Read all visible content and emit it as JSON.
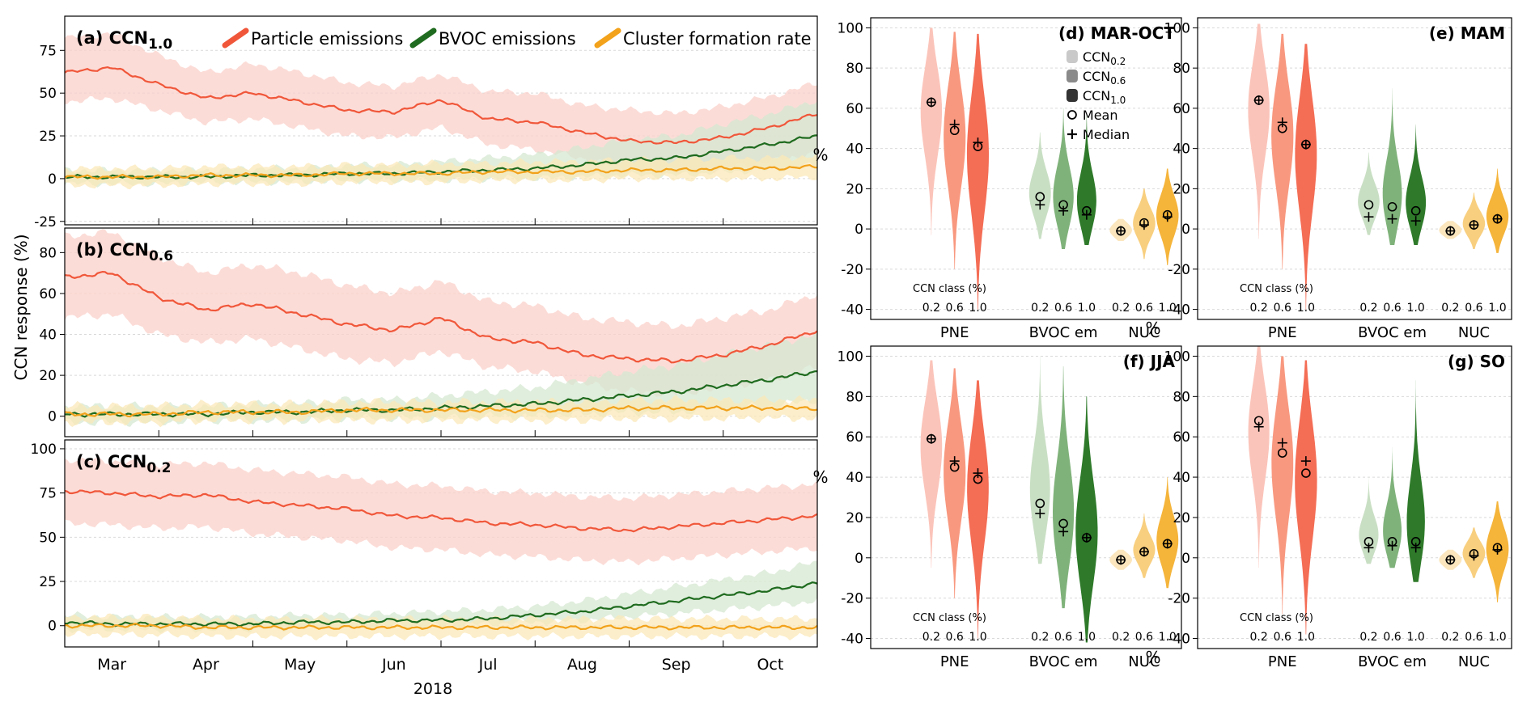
{
  "chart_data": [
    {
      "type": "line",
      "title": "(a) CCN",
      "title_sub": "1.0",
      "ylim": [
        -27,
        95
      ],
      "yticks": [
        -25,
        0,
        25,
        50,
        75
      ],
      "grid": true,
      "legend": {
        "placement": "top",
        "entries": [
          "Particle emissions",
          "BVOC emissions",
          "Cluster formation rate"
        ]
      },
      "series": [
        {
          "name": "Particle emissions",
          "color": "#f0573a",
          "band": "#fbd0c9",
          "x": [
            0,
            1,
            2,
            3,
            4,
            5,
            6,
            7,
            8,
            9,
            10,
            11,
            12,
            13,
            14,
            15,
            16
          ],
          "values": [
            62,
            65,
            55,
            47,
            50,
            45,
            40,
            39,
            46,
            35,
            33,
            27,
            22,
            21,
            24,
            30,
            38
          ],
          "lower": [
            45,
            47,
            40,
            33,
            35,
            30,
            25,
            24,
            30,
            20,
            17,
            12,
            5,
            4,
            6,
            10,
            15
          ],
          "upper": [
            82,
            85,
            72,
            62,
            67,
            62,
            56,
            54,
            61,
            51,
            50,
            43,
            40,
            38,
            42,
            48,
            56
          ]
        },
        {
          "name": "BVOC emissions",
          "color": "#1f6b1f",
          "band": "#d5e8d2",
          "x": [
            0,
            1,
            2,
            3,
            4,
            5,
            6,
            7,
            8,
            9,
            10,
            11,
            12,
            13,
            14,
            15,
            16
          ],
          "values": [
            1,
            1,
            1,
            1,
            2,
            2,
            3,
            3,
            4,
            5,
            6,
            8,
            11,
            12,
            16,
            20,
            25
          ],
          "lower": [
            -3,
            -3,
            -3,
            -2,
            -2,
            -2,
            -1,
            -1,
            -1,
            0,
            0,
            1,
            2,
            2,
            4,
            5,
            8
          ],
          "upper": [
            5,
            5,
            5,
            5,
            6,
            6,
            8,
            8,
            10,
            12,
            14,
            18,
            23,
            25,
            32,
            38,
            46
          ]
        },
        {
          "name": "Cluster formation rate",
          "color": "#f2a21b",
          "band": "#fbe8b8",
          "x": [
            0,
            1,
            2,
            3,
            4,
            5,
            6,
            7,
            8,
            9,
            10,
            11,
            12,
            13,
            14,
            15,
            16
          ],
          "values": [
            1,
            1,
            1,
            2,
            2,
            2,
            3,
            3,
            3,
            4,
            4,
            4,
            5,
            5,
            6,
            6,
            7
          ],
          "lower": [
            -4,
            -4,
            -4,
            -3,
            -3,
            -3,
            -2,
            -2,
            -2,
            -1,
            -1,
            -1,
            0,
            0,
            0,
            0,
            1
          ],
          "upper": [
            6,
            6,
            6,
            7,
            7,
            7,
            8,
            8,
            9,
            9,
            10,
            10,
            11,
            11,
            12,
            12,
            13
          ]
        }
      ]
    },
    {
      "type": "line",
      "title": "(b) CCN",
      "title_sub": "0.6",
      "ylim": [
        -10,
        92
      ],
      "yticks": [
        0,
        20,
        40,
        60,
        80
      ],
      "grid": true,
      "series": [
        {
          "name": "Particle emissions",
          "color": "#f0573a",
          "band": "#fbd0c9",
          "x": [
            0,
            1,
            2,
            3,
            4,
            5,
            6,
            7,
            8,
            9,
            10,
            11,
            12,
            13,
            14,
            15,
            16
          ],
          "values": [
            68,
            70,
            58,
            52,
            55,
            50,
            45,
            42,
            48,
            38,
            36,
            30,
            28,
            27,
            30,
            35,
            42
          ],
          "lower": [
            48,
            50,
            40,
            36,
            38,
            33,
            28,
            26,
            32,
            24,
            22,
            16,
            12,
            11,
            14,
            18,
            24
          ],
          "upper": [
            88,
            90,
            78,
            70,
            74,
            70,
            64,
            60,
            66,
            56,
            54,
            48,
            46,
            44,
            48,
            52,
            60
          ]
        },
        {
          "name": "BVOC emissions",
          "color": "#1f6b1f",
          "band": "#d5e8d2",
          "x": [
            0,
            1,
            2,
            3,
            4,
            5,
            6,
            7,
            8,
            9,
            10,
            11,
            12,
            13,
            14,
            15,
            16
          ],
          "values": [
            1,
            1,
            1,
            1,
            2,
            2,
            3,
            3,
            4,
            5,
            6,
            8,
            10,
            12,
            15,
            18,
            22
          ],
          "lower": [
            -3,
            -3,
            -3,
            -2,
            -2,
            -2,
            -1,
            -1,
            -1,
            0,
            0,
            1,
            2,
            2,
            4,
            5,
            8
          ],
          "upper": [
            5,
            5,
            5,
            5,
            6,
            6,
            8,
            8,
            10,
            12,
            14,
            18,
            22,
            25,
            30,
            35,
            40
          ]
        },
        {
          "name": "Cluster formation rate",
          "color": "#f2a21b",
          "band": "#fbe8b8",
          "x": [
            0,
            1,
            2,
            3,
            4,
            5,
            6,
            7,
            8,
            9,
            10,
            11,
            12,
            13,
            14,
            15,
            16
          ],
          "values": [
            1,
            1,
            1,
            2,
            2,
            2,
            3,
            3,
            3,
            3,
            3,
            3,
            4,
            4,
            4,
            4,
            4
          ],
          "lower": [
            -3,
            -3,
            -3,
            -2,
            -2,
            -2,
            -2,
            -2,
            -2,
            -2,
            -2,
            -2,
            -1,
            -1,
            -1,
            -1,
            -1
          ],
          "upper": [
            5,
            5,
            5,
            6,
            6,
            6,
            7,
            7,
            7,
            7,
            7,
            7,
            8,
            8,
            8,
            8,
            8
          ]
        }
      ]
    },
    {
      "type": "line",
      "title": "(c) CCN",
      "title_sub": "0.2",
      "ylim": [
        -12,
        105
      ],
      "yticks": [
        0,
        25,
        50,
        75,
        100
      ],
      "grid": true,
      "xtick_labels": [
        "Mar",
        "Apr",
        "May",
        "Jun",
        "Jul",
        "Aug",
        "Sep",
        "Oct"
      ],
      "xlabel": "2018",
      "series": [
        {
          "name": "Particle emissions",
          "color": "#f0573a",
          "band": "#fbd0c9",
          "x": [
            0,
            1,
            2,
            3,
            4,
            5,
            6,
            7,
            8,
            9,
            10,
            11,
            12,
            13,
            14,
            15,
            16
          ],
          "values": [
            76,
            75,
            73,
            74,
            70,
            68,
            66,
            62,
            61,
            58,
            57,
            55,
            54,
            56,
            58,
            60,
            62
          ],
          "lower": [
            58,
            57,
            55,
            56,
            52,
            50,
            48,
            44,
            43,
            40,
            39,
            37,
            36,
            38,
            40,
            42,
            44
          ],
          "upper": [
            94,
            93,
            91,
            92,
            88,
            86,
            84,
            80,
            79,
            76,
            75,
            73,
            72,
            74,
            76,
            78,
            80
          ]
        },
        {
          "name": "BVOC emissions",
          "color": "#1f6b1f",
          "band": "#d5e8d2",
          "x": [
            0,
            1,
            2,
            3,
            4,
            5,
            6,
            7,
            8,
            9,
            10,
            11,
            12,
            13,
            14,
            15,
            16
          ],
          "values": [
            2,
            1,
            1,
            1,
            1,
            2,
            2,
            3,
            3,
            4,
            6,
            8,
            11,
            14,
            17,
            20,
            24
          ],
          "lower": [
            -2,
            -2,
            -2,
            -2,
            -2,
            -1,
            -1,
            0,
            0,
            1,
            2,
            3,
            5,
            7,
            9,
            11,
            14
          ],
          "upper": [
            6,
            5,
            5,
            5,
            5,
            6,
            6,
            7,
            8,
            9,
            11,
            14,
            18,
            22,
            26,
            30,
            36
          ]
        },
        {
          "name": "Cluster formation rate",
          "color": "#f2a21b",
          "band": "#fbe8b8",
          "x": [
            0,
            1,
            2,
            3,
            4,
            5,
            6,
            7,
            8,
            9,
            10,
            11,
            12,
            13,
            14,
            15,
            16
          ],
          "values": [
            0,
            0,
            0,
            -1,
            -1,
            -1,
            -1,
            -1,
            -1,
            -1,
            -1,
            -1,
            -1,
            -1,
            -1,
            -1,
            -1
          ],
          "lower": [
            -5,
            -5,
            -5,
            -6,
            -6,
            -6,
            -6,
            -6,
            -6,
            -6,
            -6,
            -6,
            -6,
            -6,
            -6,
            -6,
            -6
          ],
          "upper": [
            5,
            5,
            5,
            4,
            4,
            4,
            4,
            4,
            4,
            4,
            4,
            4,
            4,
            4,
            4,
            4,
            4
          ]
        }
      ]
    },
    {
      "type": "violin",
      "title": "(d) MAR-OCT",
      "ylabel": "%",
      "ylim": [
        -45,
        105
      ],
      "yticks": [
        -40,
        -20,
        0,
        20,
        40,
        60,
        80,
        100
      ],
      "group_labels": [
        "PNE",
        "BVOC em",
        "NUC"
      ],
      "class_labels": [
        "0.2",
        "0.6",
        "1.0"
      ],
      "class_title": "CCN class (%)",
      "legend": {
        "placement": "top-right",
        "entries": [
          "CCN0.2",
          "CCN0.6",
          "CCN1.0",
          "Mean",
          "Median"
        ]
      },
      "groups": [
        {
          "name": "PNE",
          "mean": [
            63,
            49,
            41
          ],
          "median": [
            63,
            52,
            43
          ],
          "min": [
            -3,
            -20,
            -40
          ],
          "max": [
            100,
            98,
            97
          ]
        },
        {
          "name": "BVOC em",
          "mean": [
            16,
            12,
            9
          ],
          "median": [
            12,
            9,
            7
          ],
          "min": [
            -5,
            -10,
            -8
          ],
          "max": [
            48,
            60,
            58
          ]
        },
        {
          "name": "NUC",
          "mean": [
            -1,
            3,
            7
          ],
          "median": [
            -1,
            2,
            6
          ],
          "min": [
            -6,
            -15,
            -18
          ],
          "max": [
            5,
            20,
            30
          ]
        }
      ]
    },
    {
      "type": "violin",
      "title": "(e) MAM",
      "ylabel": "%",
      "ylim": [
        -45,
        105
      ],
      "yticks": [
        -40,
        -20,
        0,
        20,
        40,
        60,
        80,
        100
      ],
      "group_labels": [
        "PNE",
        "BVOC em",
        "NUC"
      ],
      "class_labels": [
        "0.2",
        "0.6",
        "1.0"
      ],
      "class_title": "CCN class (%)",
      "groups": [
        {
          "name": "PNE",
          "mean": [
            64,
            50,
            42
          ],
          "median": [
            64,
            53,
            42
          ],
          "min": [
            -5,
            -20,
            -40
          ],
          "max": [
            102,
            97,
            92
          ]
        },
        {
          "name": "BVOC em",
          "mean": [
            12,
            11,
            9
          ],
          "median": [
            6,
            5,
            4
          ],
          "min": [
            -3,
            -8,
            -8
          ],
          "max": [
            38,
            70,
            52
          ]
        },
        {
          "name": "NUC",
          "mean": [
            -1,
            2,
            5
          ],
          "median": [
            -1,
            2,
            5
          ],
          "min": [
            -5,
            -10,
            -12
          ],
          "max": [
            4,
            18,
            30
          ]
        }
      ]
    },
    {
      "type": "violin",
      "title": "(f) JJA",
      "ylabel": "%",
      "ylim": [
        -45,
        105
      ],
      "yticks": [
        -40,
        -20,
        0,
        20,
        40,
        60,
        80,
        100
      ],
      "group_labels": [
        "PNE",
        "BVOC em",
        "NUC"
      ],
      "class_labels": [
        "0.2",
        "0.6",
        "1.0"
      ],
      "class_title": "CCN class (%)",
      "groups": [
        {
          "name": "PNE",
          "mean": [
            59,
            45,
            39
          ],
          "median": [
            59,
            48,
            42
          ],
          "min": [
            -5,
            -20,
            -40
          ],
          "max": [
            98,
            94,
            88
          ]
        },
        {
          "name": "BVOC em",
          "mean": [
            27,
            17,
            10
          ],
          "median": [
            22,
            13,
            10
          ],
          "min": [
            -3,
            -25,
            -42
          ],
          "max": [
            100,
            95,
            80
          ]
        },
        {
          "name": "NUC",
          "mean": [
            -1,
            3,
            7
          ],
          "median": [
            -1,
            3,
            7
          ],
          "min": [
            -6,
            -10,
            -15
          ],
          "max": [
            4,
            22,
            40
          ]
        }
      ]
    },
    {
      "type": "violin",
      "title": "(g) SO",
      "ylabel": "%",
      "ylim": [
        -45,
        105
      ],
      "yticks": [
        -40,
        -20,
        0,
        20,
        40,
        60,
        80,
        100
      ],
      "group_labels": [
        "PNE",
        "BVOC em",
        "NUC"
      ],
      "class_labels": [
        "0.2",
        "0.6",
        "1.0"
      ],
      "class_title": "CCN class (%)",
      "groups": [
        {
          "name": "PNE",
          "mean": [
            68,
            52,
            42
          ],
          "median": [
            65,
            57,
            48
          ],
          "min": [
            -5,
            -28,
            -38
          ],
          "max": [
            105,
            100,
            98
          ]
        },
        {
          "name": "BVOC em",
          "mean": [
            8,
            8,
            8
          ],
          "median": [
            5,
            6,
            5
          ],
          "min": [
            -3,
            -5,
            -12
          ],
          "max": [
            40,
            55,
            88
          ]
        },
        {
          "name": "NUC",
          "mean": [
            -1,
            2,
            5
          ],
          "median": [
            -1,
            1,
            4
          ],
          "min": [
            -6,
            -10,
            -22
          ],
          "max": [
            4,
            15,
            28
          ]
        }
      ]
    }
  ],
  "ylabel_left": "CCN response (%)",
  "colors": {
    "pne": [
      "#fbc4ba",
      "#f8987f",
      "#f46d55"
    ],
    "bvoc": [
      "#c9dfc4",
      "#7fb27a",
      "#2e7a2a"
    ],
    "nuc": [
      "#fbe6bd",
      "#f8cf7f",
      "#f5b43a"
    ]
  }
}
